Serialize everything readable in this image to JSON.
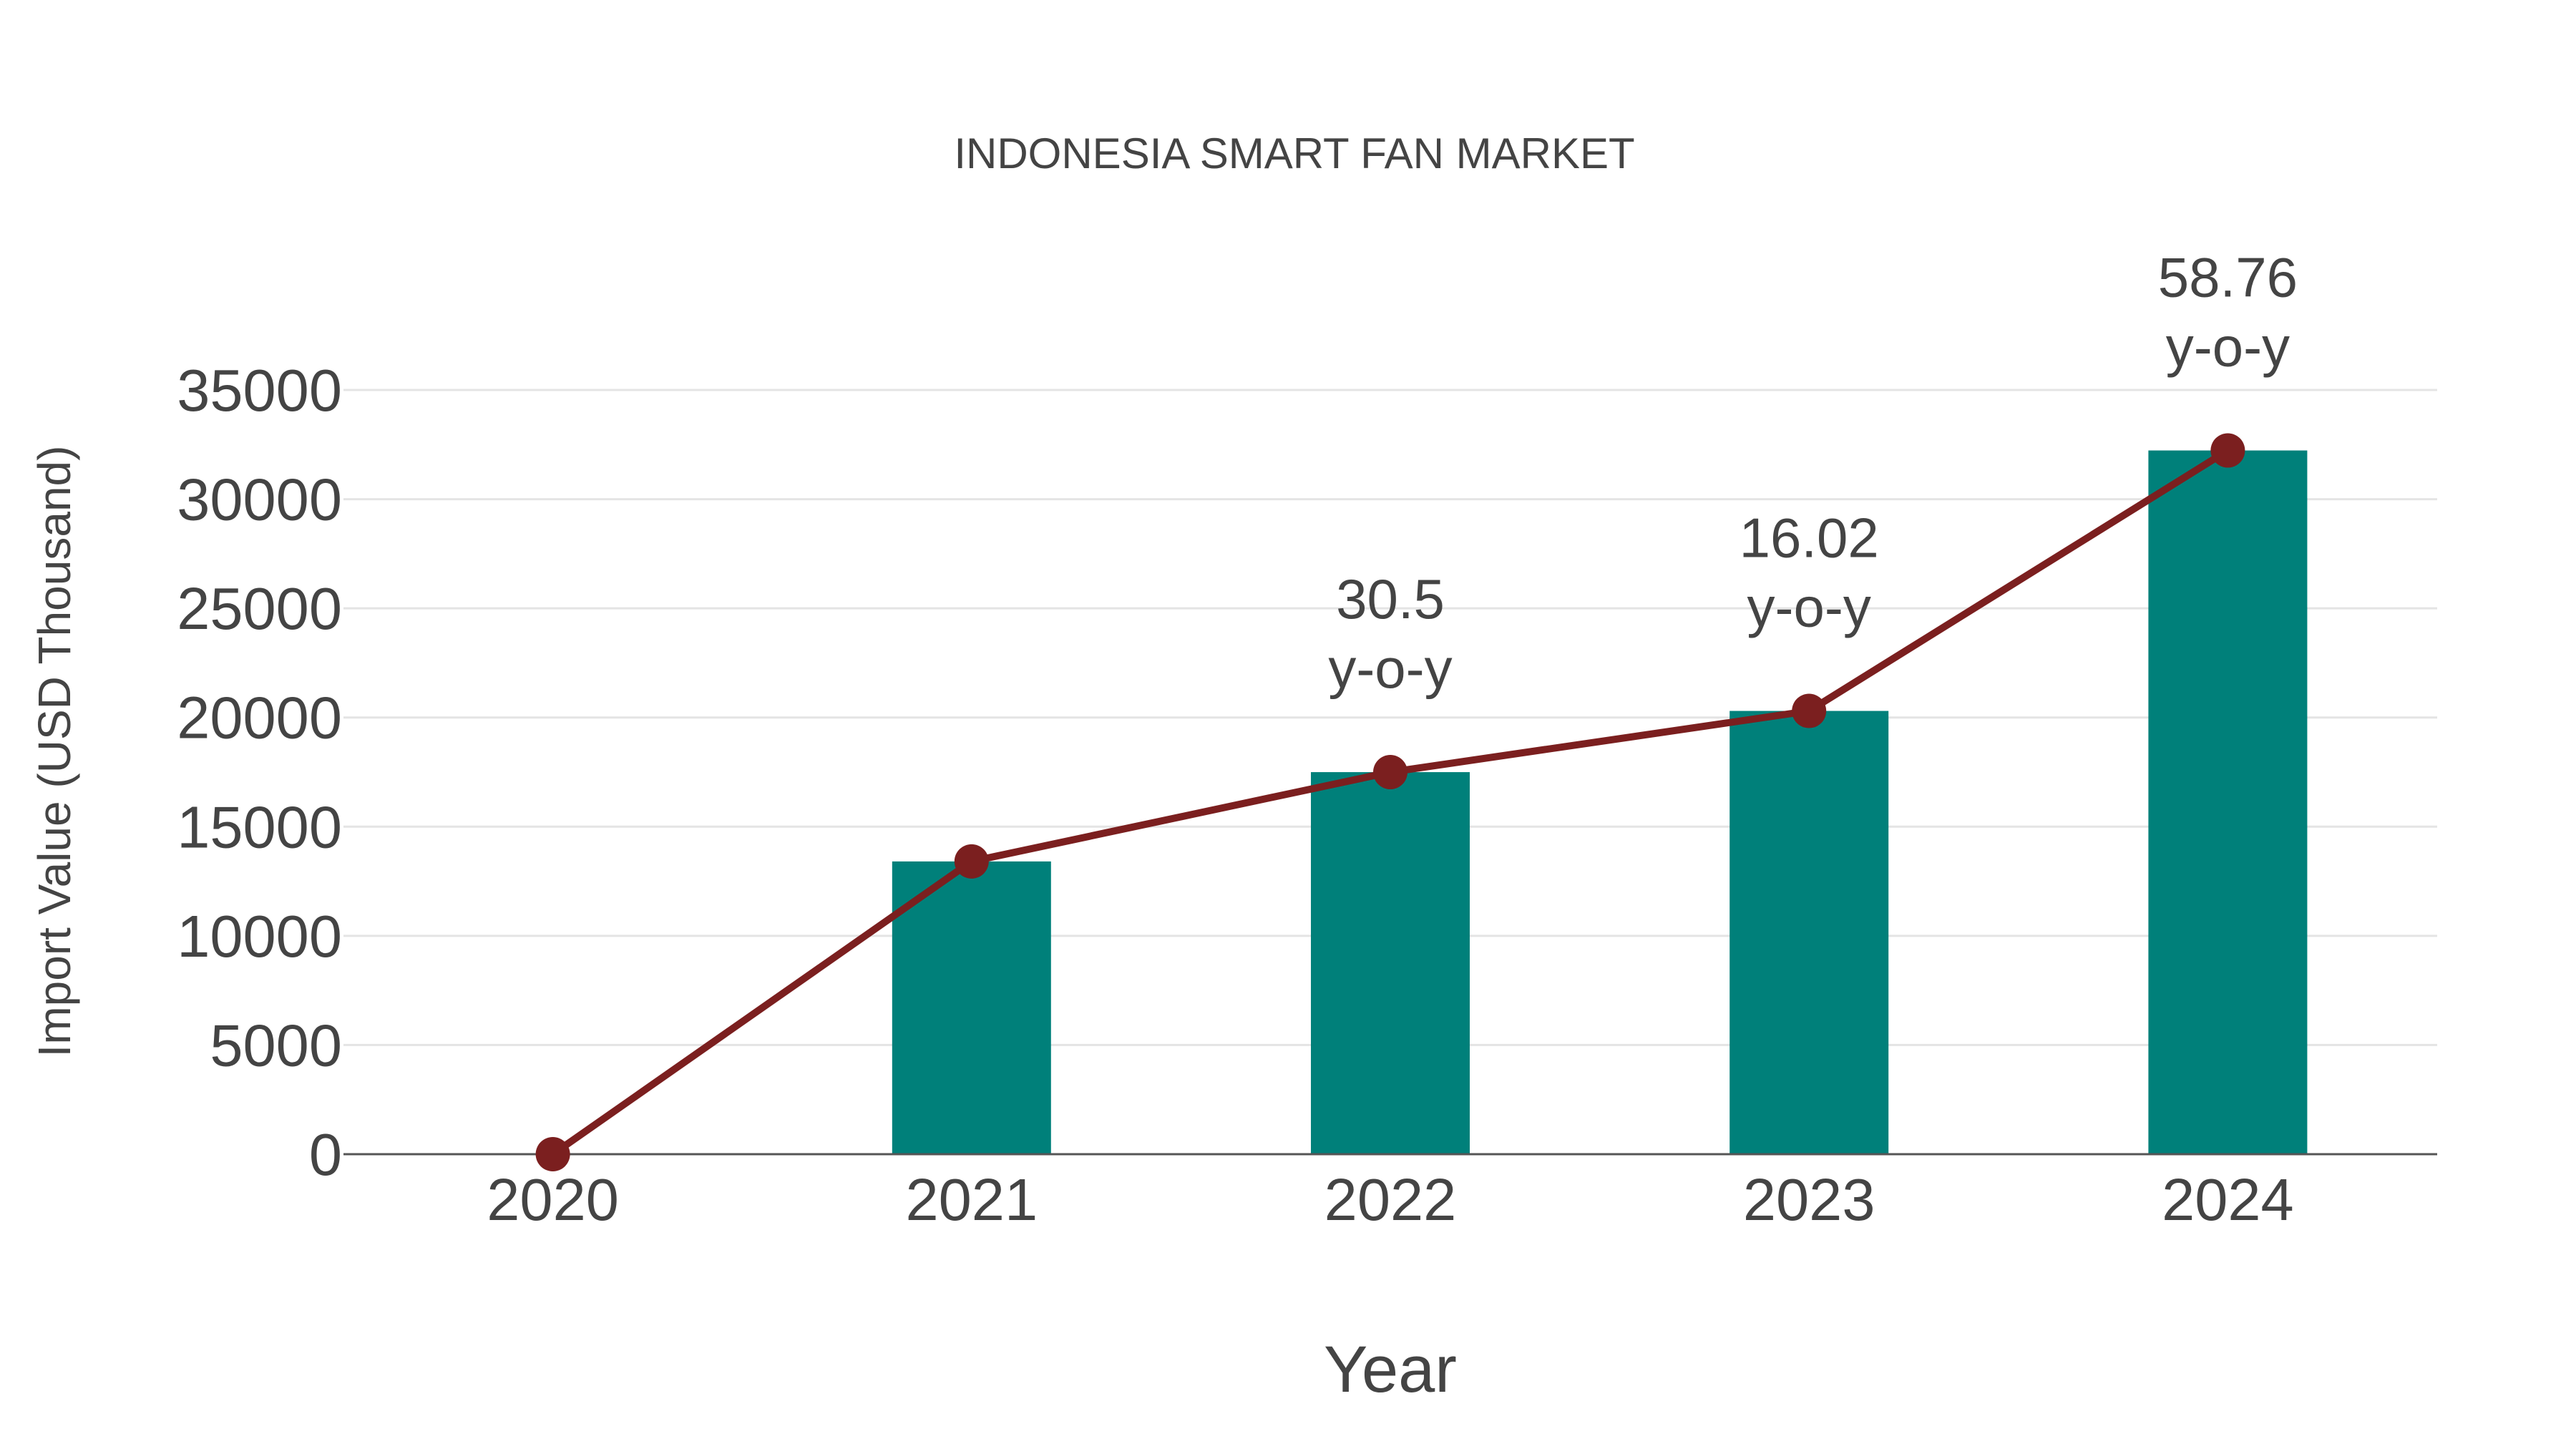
{
  "chart_data": {
    "type": "bar",
    "title": "INDONESIA SMART FAN MARKET",
    "xlabel": "Year",
    "ylabel": "Import Value (USD Thousand)",
    "categories": [
      "2020",
      "2021",
      "2022",
      "2023",
      "2024"
    ],
    "series": [
      {
        "name": "Import Value",
        "type": "bar",
        "color": "#00807a",
        "values": [
          0,
          13408,
          17498,
          20301,
          32230
        ]
      },
      {
        "name": "Trend",
        "type": "line",
        "color": "#7b1f1f",
        "values": [
          0,
          13408,
          17498,
          20301,
          32230
        ]
      }
    ],
    "annotations": [
      {
        "category": "2022",
        "value": "30.5",
        "suffix": "y-o-y"
      },
      {
        "category": "2023",
        "value": "16.02",
        "suffix": "y-o-y"
      },
      {
        "category": "2024",
        "value": "58.76",
        "suffix": "y-o-y"
      }
    ],
    "yticks": [
      "0",
      "5000",
      "10000",
      "15000",
      "20000",
      "25000",
      "30000",
      "35000"
    ],
    "ylim": [
      0,
      35000
    ],
    "grid": true
  }
}
